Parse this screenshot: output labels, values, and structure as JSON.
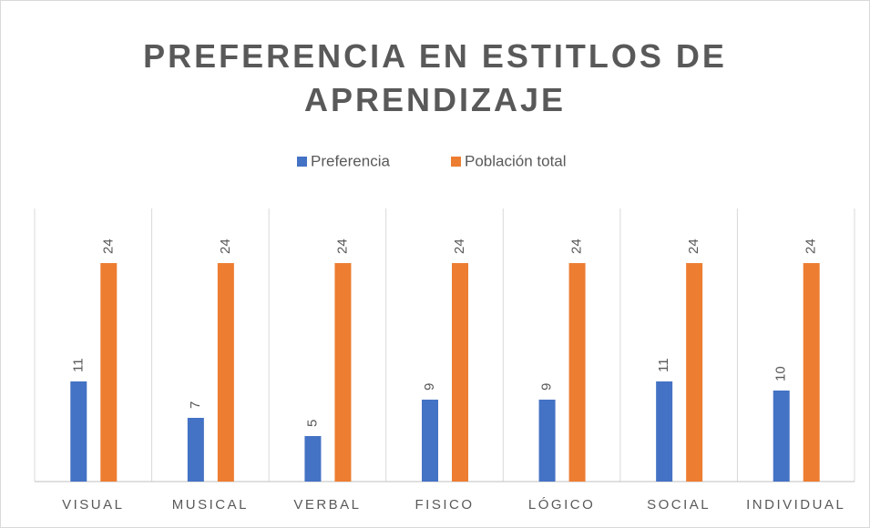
{
  "chart_data": {
    "type": "bar",
    "title": "PREFERENCIA EN ESTITLOS DE APRENDIZAJE",
    "categories": [
      "VISUAL",
      "MUSICAL",
      "VERBAL",
      "FISICO",
      "LÓGICO",
      "SOCIAL",
      "INDIVIDUAL"
    ],
    "series": [
      {
        "name": "Preferencia",
        "color": "#4472c4",
        "values": [
          11,
          7,
          5,
          9,
          9,
          11,
          10
        ]
      },
      {
        "name": "Población total",
        "color": "#ed7d31",
        "values": [
          24,
          24,
          24,
          24,
          24,
          24,
          24
        ]
      }
    ],
    "ylim": [
      0,
      30
    ],
    "legend": "top"
  }
}
